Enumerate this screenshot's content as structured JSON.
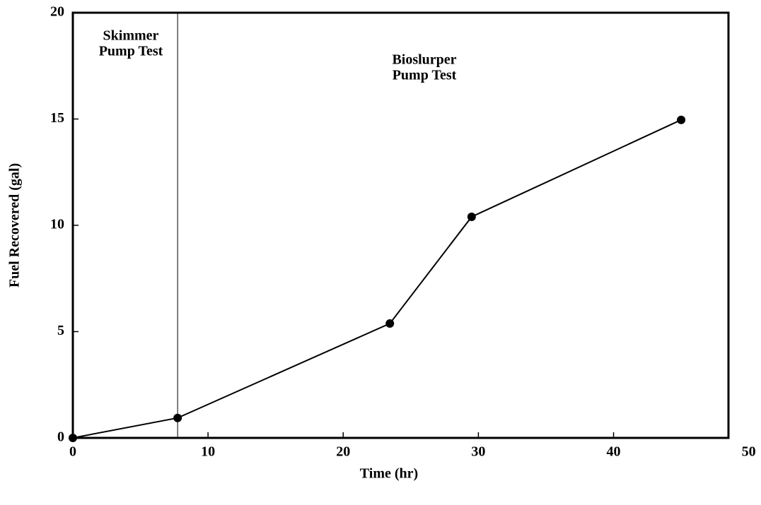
{
  "chart_data": {
    "type": "line",
    "x_label": "Time (hr)",
    "y_label": "Fuel Recovered (gal)",
    "x": [
      0,
      7.75,
      23.45,
      29.5,
      45.0
    ],
    "series": [
      {
        "color": "#000000",
        "values": [
          0,
          0.94,
          5.38,
          10.4,
          14.96
        ]
      }
    ],
    "xlim": [
      0,
      48.5
    ],
    "xticks": [
      0,
      10,
      20,
      30,
      40,
      50
    ],
    "ylim": [
      0,
      20
    ],
    "yticks": [
      0,
      5,
      10,
      15,
      20
    ],
    "divider_x": 7.75,
    "annotations": [
      {
        "lines": [
          "Skimmer",
          "Pump Test"
        ]
      },
      {
        "lines": [
          "Bioslurper",
          "Pump Test"
        ]
      }
    ]
  }
}
